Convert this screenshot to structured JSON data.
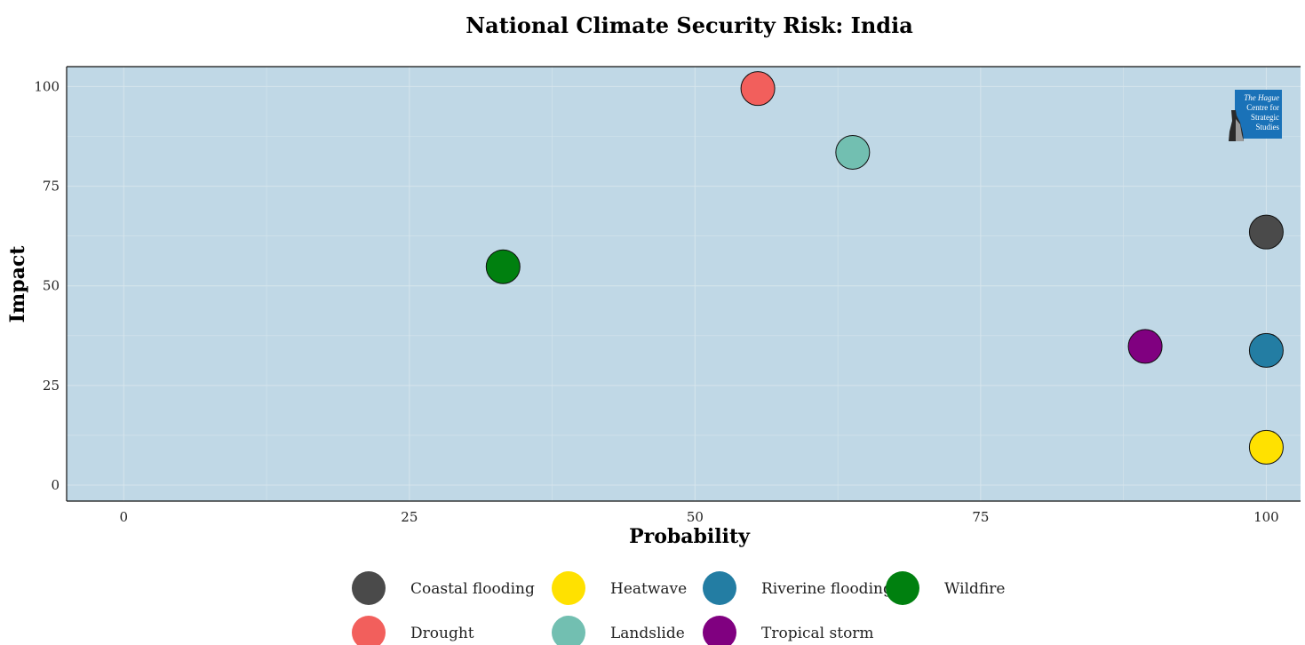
{
  "chart_data": {
    "type": "scatter",
    "title": "National Climate Security Risk: India",
    "xlabel": "Probability",
    "ylabel": "Impact",
    "xlim": [
      -5,
      103
    ],
    "ylim": [
      -4,
      105
    ],
    "xticks": [
      0,
      25,
      50,
      75,
      100
    ],
    "yticks": [
      0,
      25,
      50,
      75,
      100
    ],
    "xtick_labels": [
      "0",
      "25",
      "50",
      "75",
      "100"
    ],
    "ytick_labels": [
      "0",
      "25",
      "50",
      "75",
      "100"
    ],
    "grid": true,
    "legend_position": "bottom",
    "points": [
      {
        "name": "Drought",
        "x": 55.5,
        "y": 99.5,
        "color": "#f25f5c"
      },
      {
        "name": "Landslide",
        "x": 63.8,
        "y": 83.5,
        "color": "#72bfb1"
      },
      {
        "name": "Wildfire",
        "x": 33.2,
        "y": 54.8,
        "color": "#00800f"
      },
      {
        "name": "Coastal flooding",
        "x": 100,
        "y": 63.5,
        "color": "#4a4a4a"
      },
      {
        "name": "Tropical storm",
        "x": 89.4,
        "y": 34.8,
        "color": "#800080"
      },
      {
        "name": "Riverine flooding",
        "x": 100,
        "y": 33.8,
        "color": "#237da3"
      },
      {
        "name": "Heatwave",
        "x": 100,
        "y": 9.5,
        "color": "#ffe100"
      }
    ],
    "legend": [
      {
        "name": "Coastal flooding",
        "color": "#4a4a4a"
      },
      {
        "name": "Heatwave",
        "color": "#ffe100"
      },
      {
        "name": "Riverine flooding",
        "color": "#237da3"
      },
      {
        "name": "Wildfire",
        "color": "#00800f"
      },
      {
        "name": "Drought",
        "color": "#f25f5c"
      },
      {
        "name": "Landslide",
        "color": "#72bfb1"
      },
      {
        "name": "Tropical storm",
        "color": "#800080"
      }
    ]
  },
  "colors": {
    "panel_background": "#c0d8e6",
    "grid": "#d6e5ec",
    "logo_background": "#1a72b8"
  },
  "logo": {
    "line1": "The Hague",
    "line2": "Centre for",
    "line3": "Strategic",
    "line4": "Studies"
  }
}
